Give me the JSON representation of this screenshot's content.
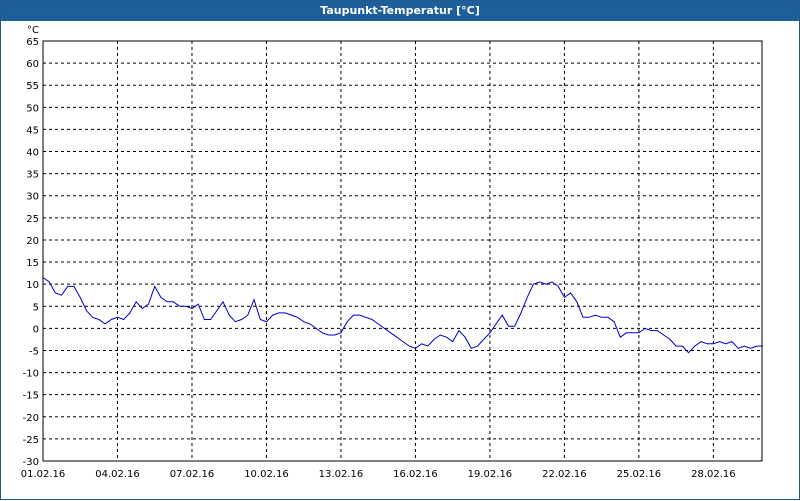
{
  "window": {
    "title": "Taupunkt-Temperatur [°C]"
  },
  "chart_data": {
    "type": "line",
    "title": "Taupunkt-Temperatur [°C]",
    "ylabel": "°C",
    "xlabel": "",
    "ylim": [
      -30,
      65
    ],
    "y_ticks": [
      65,
      60,
      55,
      50,
      45,
      40,
      35,
      30,
      25,
      20,
      15,
      10,
      5,
      0,
      -5,
      -10,
      -15,
      -20,
      -25,
      -30
    ],
    "x_range": [
      "2016-02-01",
      "2016-02-29"
    ],
    "x_ticks": [
      "01.02.16",
      "04.02.16",
      "07.02.16",
      "10.02.16",
      "13.02.16",
      "16.02.16",
      "19.02.16",
      "22.02.16",
      "25.02.16",
      "28.02.16"
    ],
    "grid": true,
    "series": [
      {
        "color": "#0000c8",
        "x": [
          "2016-02-01 00:00",
          "2016-02-01 06:00",
          "2016-02-01 12:00",
          "2016-02-01 18:00",
          "2016-02-02 00:00",
          "2016-02-02 06:00",
          "2016-02-02 12:00",
          "2016-02-02 18:00",
          "2016-02-03 00:00",
          "2016-02-03 06:00",
          "2016-02-03 12:00",
          "2016-02-03 18:00",
          "2016-02-04 00:00",
          "2016-02-04 06:00",
          "2016-02-04 12:00",
          "2016-02-04 18:00",
          "2016-02-05 00:00",
          "2016-02-05 06:00",
          "2016-02-05 12:00",
          "2016-02-05 18:00",
          "2016-02-06 00:00",
          "2016-02-06 06:00",
          "2016-02-06 12:00",
          "2016-02-06 18:00",
          "2016-02-07 00:00",
          "2016-02-07 06:00",
          "2016-02-07 12:00",
          "2016-02-07 18:00",
          "2016-02-08 00:00",
          "2016-02-08 06:00",
          "2016-02-08 12:00",
          "2016-02-08 18:00",
          "2016-02-09 00:00",
          "2016-02-09 06:00",
          "2016-02-09 12:00",
          "2016-02-09 18:00",
          "2016-02-10 00:00",
          "2016-02-10 06:00",
          "2016-02-10 12:00",
          "2016-02-10 18:00",
          "2016-02-11 00:00",
          "2016-02-11 06:00",
          "2016-02-11 12:00",
          "2016-02-11 18:00",
          "2016-02-12 00:00",
          "2016-02-12 06:00",
          "2016-02-12 12:00",
          "2016-02-12 18:00",
          "2016-02-13 00:00",
          "2016-02-13 06:00",
          "2016-02-13 12:00",
          "2016-02-13 18:00",
          "2016-02-14 00:00",
          "2016-02-14 06:00",
          "2016-02-14 12:00",
          "2016-02-14 18:00",
          "2016-02-15 00:00",
          "2016-02-15 06:00",
          "2016-02-15 12:00",
          "2016-02-15 18:00",
          "2016-02-16 00:00",
          "2016-02-16 06:00",
          "2016-02-16 12:00",
          "2016-02-16 18:00",
          "2016-02-17 00:00",
          "2016-02-17 06:00",
          "2016-02-17 12:00",
          "2016-02-17 18:00",
          "2016-02-18 00:00",
          "2016-02-18 06:00",
          "2016-02-18 12:00",
          "2016-02-18 18:00",
          "2016-02-19 00:00",
          "2016-02-19 06:00",
          "2016-02-19 12:00",
          "2016-02-19 18:00",
          "2016-02-20 00:00",
          "2016-02-20 06:00",
          "2016-02-20 12:00",
          "2016-02-20 18:00",
          "2016-02-21 00:00",
          "2016-02-21 06:00",
          "2016-02-21 12:00",
          "2016-02-21 18:00",
          "2016-02-22 00:00",
          "2016-02-22 06:00",
          "2016-02-22 12:00",
          "2016-02-22 18:00",
          "2016-02-23 00:00",
          "2016-02-23 06:00",
          "2016-02-23 12:00",
          "2016-02-23 18:00",
          "2016-02-24 00:00",
          "2016-02-24 06:00",
          "2016-02-24 12:00",
          "2016-02-24 18:00",
          "2016-02-25 00:00",
          "2016-02-25 06:00",
          "2016-02-25 12:00",
          "2016-02-25 18:00",
          "2016-02-26 00:00",
          "2016-02-26 06:00",
          "2016-02-26 12:00",
          "2016-02-26 18:00",
          "2016-02-27 00:00",
          "2016-02-27 06:00",
          "2016-02-27 12:00",
          "2016-02-27 18:00",
          "2016-02-28 00:00",
          "2016-02-28 06:00",
          "2016-02-28 12:00",
          "2016-02-28 18:00",
          "2016-02-29 00:00",
          "2016-02-29 06:00",
          "2016-02-29 12:00",
          "2016-02-29 18:00",
          "2016-03-01 00:00"
        ],
        "values": [
          11.5,
          10.5,
          8,
          7.5,
          9.5,
          9.5,
          7,
          4,
          2.5,
          2,
          1,
          2,
          2.5,
          2,
          3.5,
          6,
          4.5,
          5.5,
          9.5,
          7,
          6,
          6,
          5,
          5,
          4.5,
          5.5,
          2,
          2,
          4,
          6,
          3,
          1.5,
          2,
          3,
          6.5,
          2,
          1.5,
          3,
          3.5,
          3.5,
          3,
          2.5,
          1.5,
          1,
          0,
          -1,
          -1.5,
          -1.5,
          -1,
          1.5,
          3,
          3,
          2.5,
          2,
          1,
          0,
          -1,
          -2,
          -3,
          -4,
          -4.5,
          -3.5,
          -4,
          -2.5,
          -1.5,
          -2,
          -3,
          -0.5,
          -2,
          -4.5,
          -4,
          -2.5,
          -1,
          1,
          3,
          0.5,
          0.5,
          3.5,
          7,
          10,
          10.5,
          10,
          10.5,
          9.5,
          7,
          8,
          6,
          2.5,
          2.5,
          3,
          2.5,
          2.5,
          1.5,
          -2,
          -1,
          -1,
          -1,
          0,
          -0.5,
          -0.5,
          -1.5,
          -2.5,
          -4,
          -4,
          -5.5,
          -4,
          -3,
          -3.5,
          -3.5,
          -3,
          -3.5,
          -3,
          -4.5,
          -4,
          -4.5,
          -4,
          -4
        ]
      }
    ]
  }
}
